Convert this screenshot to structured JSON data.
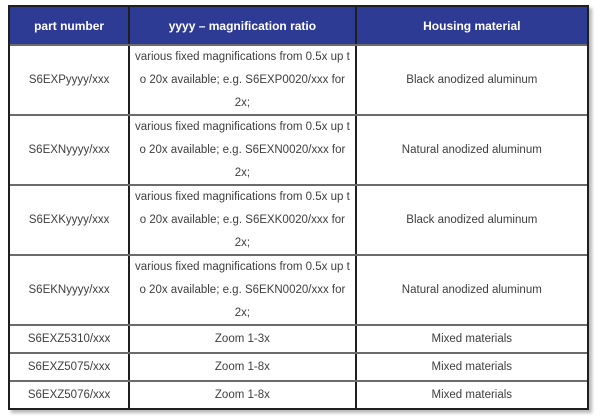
{
  "table": {
    "title": "magnification and housing options table",
    "headers": {
      "part_number": "part number",
      "magnification": "yyyy – magnification ratio",
      "housing": "Housing material"
    },
    "rows": [
      {
        "part": "S6EXPyyyy/xxx",
        "magnification": "various fixed magnifications from 0.5x up t\no 20x available;  e.g. S6EXP0020/xxx for\n2x;",
        "material": "Black anodized aluminum"
      },
      {
        "part": "S6EXNyyyy/xxx",
        "magnification": "various fixed magnifications from 0.5x up t\no 20x available;  e.g. S6EXN0020/xxx for\n2x;",
        "material": "Natural anodized aluminum"
      },
      {
        "part": "S6EXKyyyy/xxx",
        "magnification": "various fixed magnifications from 0.5x up t\no 20x available;  e.g. S6EXK0020/xxx for\n2x;",
        "material": "Black anodized aluminum"
      },
      {
        "part": "S6EKNyyyy/xxx",
        "magnification": "various fixed magnifications from 0.5x up t\no 20x available; e.g.  S6EKN0020/xxx for\n2x;",
        "material": "Natural anodized aluminum"
      },
      {
        "part": "S6EXZ5310/xxx",
        "magnification": "Zoom 1-3x",
        "material": "Mixed materials"
      },
      {
        "part": "S6EXZ5075/xxx",
        "magnification": "Zoom 1-8x",
        "material": "Mixed materials"
      },
      {
        "part": "S6EXZ5076/xxx",
        "magnification": "Zoom 1-8x",
        "material": "Mixed materials"
      }
    ]
  },
  "colors": {
    "header_background": "#2e3b94",
    "header_text": "#ffffff",
    "body_text": "#3e3e3e",
    "vertical_border": "#1f1f1f",
    "horizontal_border": "#6b6b6b"
  }
}
